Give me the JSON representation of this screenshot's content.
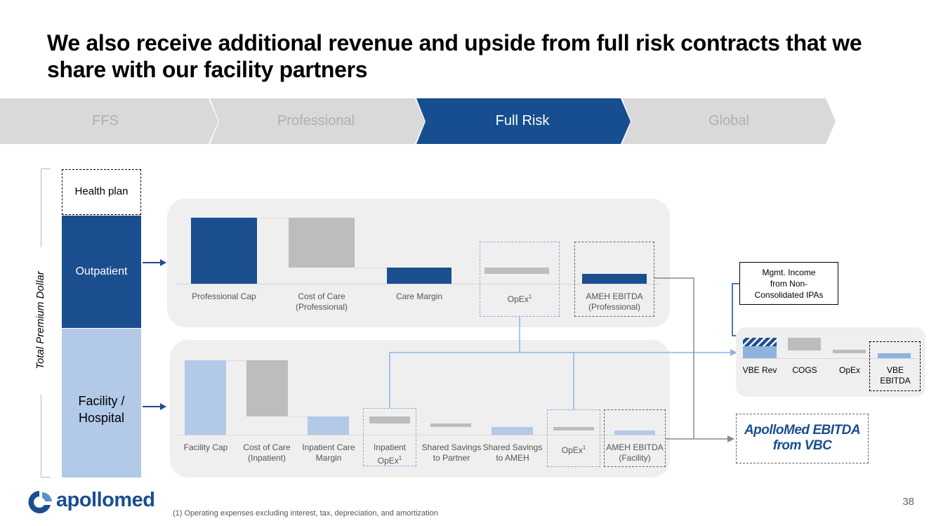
{
  "title": "We also receive additional revenue and upside from full risk contracts that we share with our facility partners",
  "tabs": [
    {
      "label": "FFS",
      "active": false
    },
    {
      "label": "Professional",
      "active": false
    },
    {
      "label": "Full Risk",
      "active": true
    },
    {
      "label": "Global",
      "active": false
    }
  ],
  "side": {
    "axis_label": "Total Premium Dollar",
    "health_plan": "Health plan",
    "outpatient": "Outpatient",
    "facility_line1": "Facility /",
    "facility_line2": "Hospital"
  },
  "top_panel": {
    "labels": [
      {
        "l1": "Professional Cap",
        "l2": ""
      },
      {
        "l1": "Cost of Care",
        "l2": "(Professional)"
      },
      {
        "l1": "Care Margin",
        "l2": ""
      },
      {
        "l1": "OpEx",
        "sup": "1",
        "l2": ""
      },
      {
        "l1": "AMEH EBITDA",
        "l2": "(Professional)"
      }
    ]
  },
  "bottom_panel": {
    "labels": [
      {
        "l1": "Facility Cap",
        "l2": ""
      },
      {
        "l1": "Cost of Care",
        "l2": "(Inpatient)"
      },
      {
        "l1": "Inpatient Care",
        "l2": "Margin"
      },
      {
        "l1": "Inpatient",
        "l2": "OpEx",
        "sup": "1"
      },
      {
        "l1": "Shared Savings",
        "l2": "to Partner"
      },
      {
        "l1": "Shared Savings",
        "l2": "to AMEH"
      },
      {
        "l1": "OpEx",
        "sup": "1",
        "l2": ""
      },
      {
        "l1": "AMEH EBITDA",
        "l2": "(Facility)"
      }
    ]
  },
  "vbe": {
    "callout_l1": "Mgmt. Income",
    "callout_l2": "from Non-",
    "callout_l3": "Consolidated IPAs",
    "labels": [
      "VBE Rev",
      "COGS",
      "OpEx"
    ],
    "ebitda_l1": "VBE",
    "ebitda_l2": "EBITDA"
  },
  "result": {
    "line1": "ApolloMed EBITDA",
    "line2": "from VBC"
  },
  "footnote": "(1) Operating expenses excluding interest, tax, depreciation, and amortization",
  "logo_text": "apollomed",
  "page_number": "38",
  "colors": {
    "navy": "#1b4e8f",
    "light_blue": "#b3c9e8",
    "gray": "#bdbdbd",
    "tab_inactive": "#d9d9d9"
  }
}
